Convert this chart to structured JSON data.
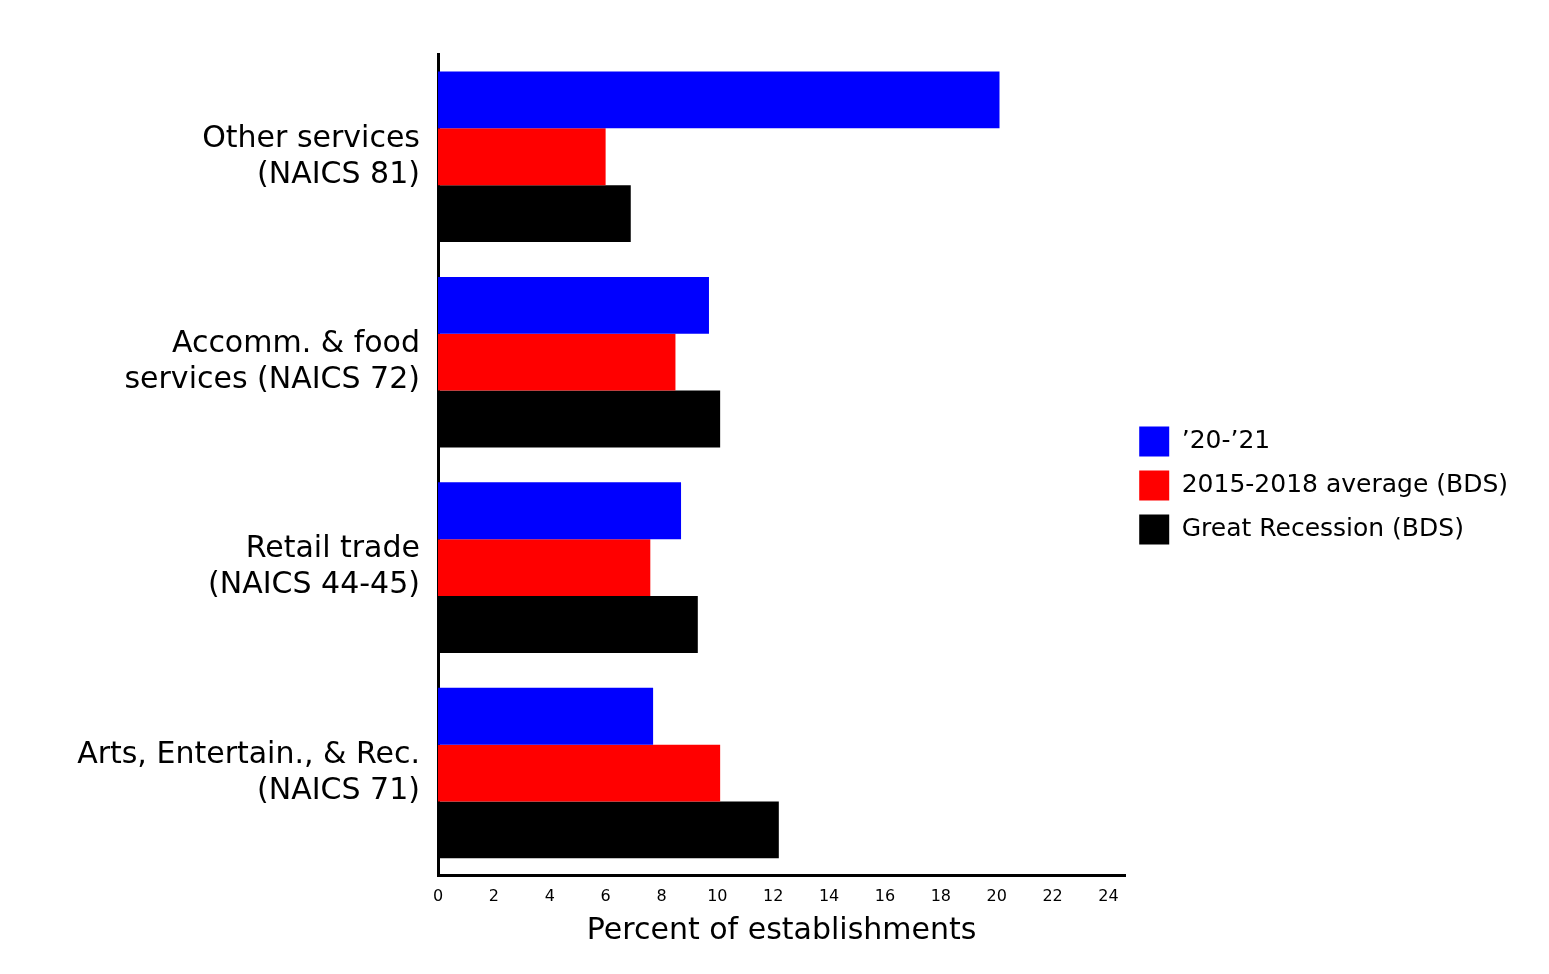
{
  "chart_data": {
    "type": "bar",
    "orientation": "horizontal",
    "xlabel": "Percent of establishments",
    "categories": [
      "Other services\n(NAICS 81)",
      "Accomm. & food\nservices (NAICS 72)",
      "Retail trade\n(NAICS 44-45)",
      "Arts, Entertain., & Rec.\n(NAICS 71)"
    ],
    "series": [
      {
        "name": "’20-’21",
        "color": "#0000ff",
        "values": [
          20.1,
          9.7,
          8.7,
          7.7
        ]
      },
      {
        "name": "2015-2018 average (BDS)",
        "color": "#ff0000",
        "values": [
          6.0,
          8.5,
          7.6,
          10.1
        ]
      },
      {
        "name": "Great Recession (BDS)",
        "color": "#000000",
        "values": [
          6.9,
          10.1,
          9.3,
          12.2
        ]
      }
    ],
    "xlim": [
      0,
      24.6
    ],
    "xticks": [
      0,
      2,
      4,
      6,
      8,
      10,
      12,
      14,
      16,
      18,
      20,
      22,
      24
    ],
    "grid": false,
    "legend": "right"
  }
}
